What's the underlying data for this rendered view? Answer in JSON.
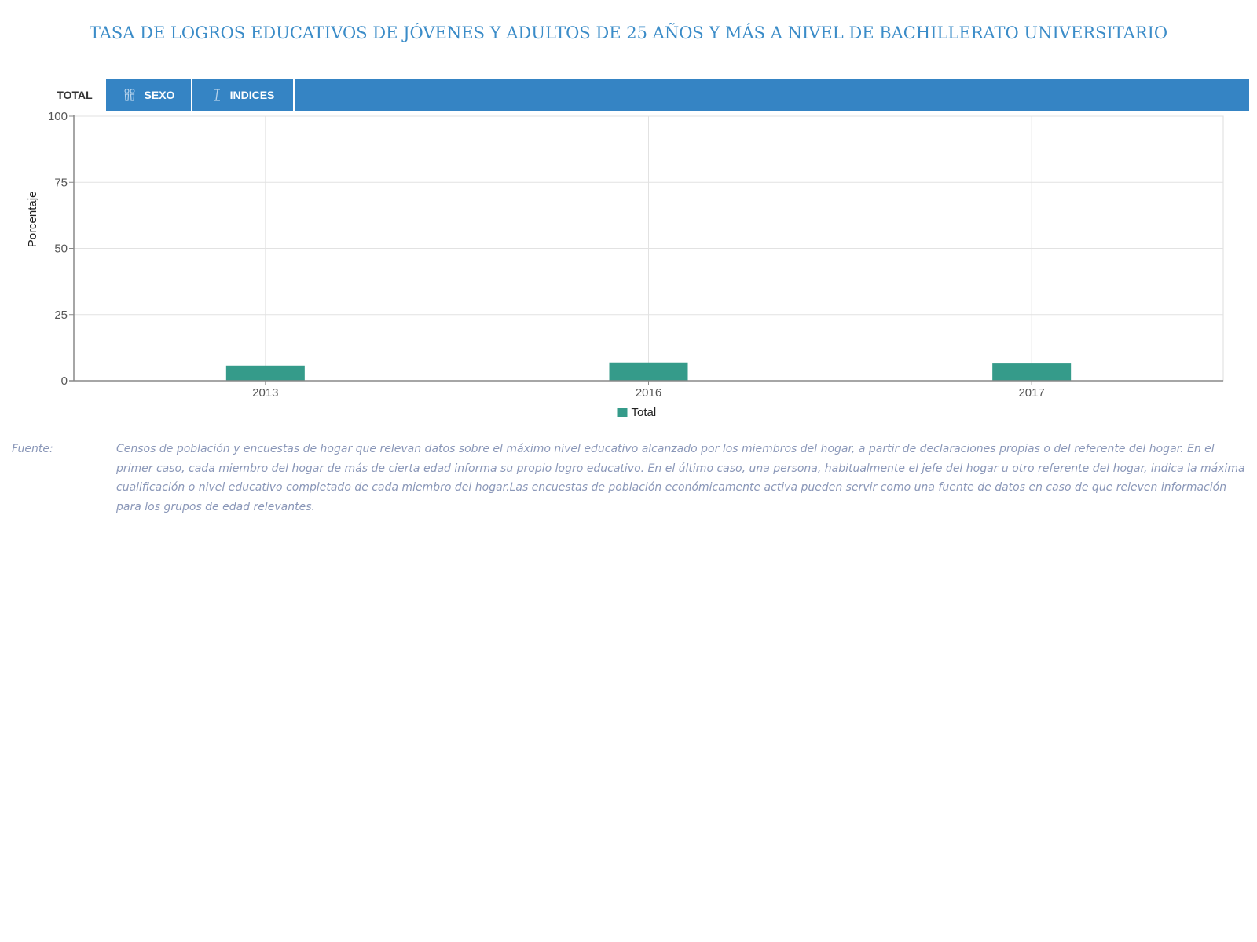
{
  "title": "TASA DE LOGROS EDUCATIVOS DE JÓVENES Y ADULTOS DE 25 AÑOS Y MÁS A NIVEL DE BACHILLERATO UNIVERSITARIO",
  "tabs": [
    {
      "label": "TOTAL",
      "icon": "",
      "active": true
    },
    {
      "label": "SEXO",
      "icon": "gender-icon",
      "active": false
    },
    {
      "label": "INDICES",
      "icon": "index-icon",
      "active": false
    }
  ],
  "chart_data": {
    "type": "bar",
    "categories": [
      "2013",
      "2016",
      "2017"
    ],
    "series": [
      {
        "name": "Total",
        "values": [
          5.7,
          6.9,
          6.5
        ],
        "color": "#359b8a"
      }
    ],
    "ylabel": "Porcentaje",
    "xlabel": "",
    "ylim": [
      0,
      100
    ],
    "yticks": [
      "0",
      "25",
      "50",
      "75",
      "100"
    ],
    "grid": true,
    "legend_position": "bottom-center"
  },
  "footnote": {
    "label": "Fuente:",
    "text": "Censos de población y encuestas de hogar que relevan datos sobre el máximo nivel educativo alcanzado por los miembros del hogar, a partir de declaraciones propias o del referente del hogar. En el primer caso, cada miembro del hogar de más de cierta edad informa su propio logro educativo. En el último caso, una persona, habitualmente el jefe del hogar u otro referente del hogar, indica la máxima cualificación o nivel educativo completado de cada miembro del hogar.Las encuestas de población económicamente activa pueden servir como una fuente de datos en caso de que releven información para los grupos de edad relevantes."
  },
  "colors": {
    "title": "#3b8cc8",
    "tabbar": "#3584c4",
    "bar": "#359b8a",
    "footnote": "#8a97b8"
  }
}
